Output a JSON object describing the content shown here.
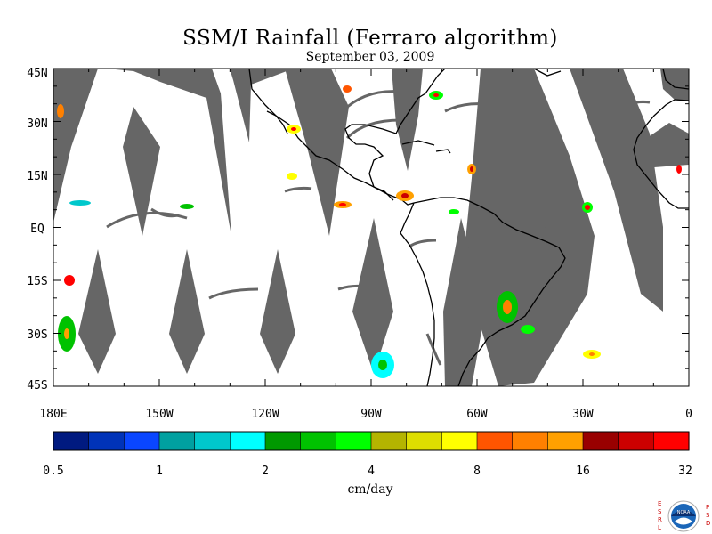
{
  "title": "SSM/I Rainfall (Ferraro algorithm)",
  "subtitle": "September 03, 2009",
  "lat_labels": [
    "45N",
    "30N",
    "15N",
    "EQ",
    "15S",
    "30S",
    "45S"
  ],
  "lon_labels": [
    "180E",
    "150W",
    "120W",
    "90W",
    "60W",
    "30W",
    "0"
  ],
  "colorbar": {
    "colors": [
      "#001a80",
      "#0033b8",
      "#0a46ff",
      "#00a0a0",
      "#00c8cc",
      "#00ffff",
      "#009900",
      "#00c200",
      "#00ff00",
      "#b4b400",
      "#dede00",
      "#ffff00",
      "#ff5500",
      "#ff8000",
      "#ffa000",
      "#990000",
      "#cc0000",
      "#ff0000"
    ],
    "tick_labels": [
      "0.5",
      "1",
      "2",
      "4",
      "8",
      "16",
      "32"
    ],
    "units": "cm/day"
  },
  "logo": {
    "left_letters": [
      "E",
      "S",
      "R",
      "L"
    ],
    "right_letters": [
      "P",
      "S",
      "D"
    ],
    "seal_text": "NOAA"
  },
  "colors": {
    "swath_gap": "#666666",
    "coast": "#000000",
    "background": "#ffffff"
  }
}
